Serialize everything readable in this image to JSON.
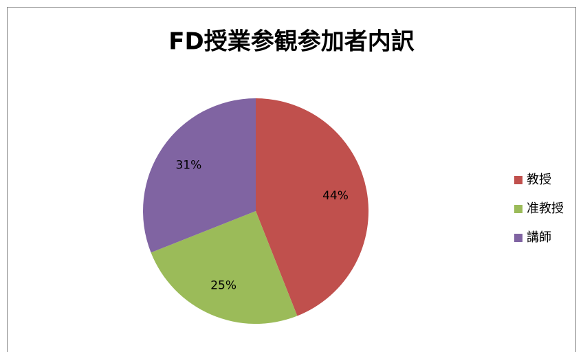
{
  "chart_data": {
    "type": "pie",
    "title": "FD授業参観参加者内訳",
    "categories": [
      "教授",
      "准教授",
      "講師"
    ],
    "values": [
      44,
      25,
      31
    ],
    "value_labels": [
      "44%",
      "25%",
      "31%"
    ],
    "colors": [
      "#c0504d",
      "#9bbb59",
      "#8064a2"
    ],
    "legend": "right"
  }
}
